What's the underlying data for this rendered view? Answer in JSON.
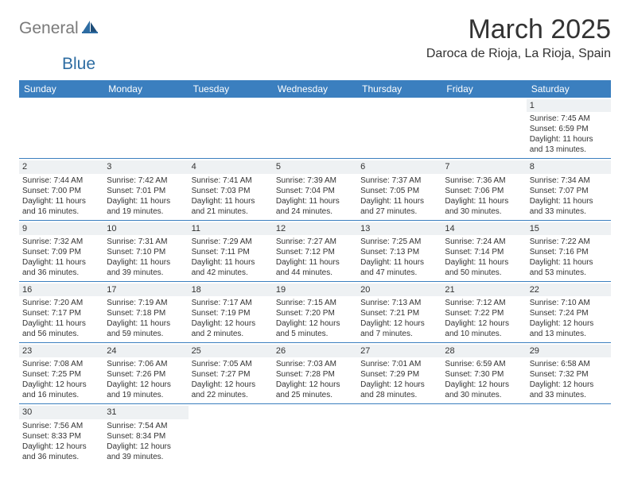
{
  "logo": {
    "gray": "General",
    "blue": "Blue"
  },
  "title": "March 2025",
  "location": "Daroca de Rioja, La Rioja, Spain",
  "colors": {
    "header_bg": "#3b7fbf",
    "header_text": "#ffffff",
    "daynum_bg": "#eef1f3",
    "body_text": "#333333",
    "logo_gray": "#7a7a7a",
    "logo_blue": "#2d6ca2",
    "divider": "#3b7fbf"
  },
  "dow": [
    "Sunday",
    "Monday",
    "Tuesday",
    "Wednesday",
    "Thursday",
    "Friday",
    "Saturday"
  ],
  "weeks": [
    [
      null,
      null,
      null,
      null,
      null,
      null,
      {
        "n": "1",
        "sr": "Sunrise: 7:45 AM",
        "ss": "Sunset: 6:59 PM",
        "dl": "Daylight: 11 hours and 13 minutes."
      }
    ],
    [
      {
        "n": "2",
        "sr": "Sunrise: 7:44 AM",
        "ss": "Sunset: 7:00 PM",
        "dl": "Daylight: 11 hours and 16 minutes."
      },
      {
        "n": "3",
        "sr": "Sunrise: 7:42 AM",
        "ss": "Sunset: 7:01 PM",
        "dl": "Daylight: 11 hours and 19 minutes."
      },
      {
        "n": "4",
        "sr": "Sunrise: 7:41 AM",
        "ss": "Sunset: 7:03 PM",
        "dl": "Daylight: 11 hours and 21 minutes."
      },
      {
        "n": "5",
        "sr": "Sunrise: 7:39 AM",
        "ss": "Sunset: 7:04 PM",
        "dl": "Daylight: 11 hours and 24 minutes."
      },
      {
        "n": "6",
        "sr": "Sunrise: 7:37 AM",
        "ss": "Sunset: 7:05 PM",
        "dl": "Daylight: 11 hours and 27 minutes."
      },
      {
        "n": "7",
        "sr": "Sunrise: 7:36 AM",
        "ss": "Sunset: 7:06 PM",
        "dl": "Daylight: 11 hours and 30 minutes."
      },
      {
        "n": "8",
        "sr": "Sunrise: 7:34 AM",
        "ss": "Sunset: 7:07 PM",
        "dl": "Daylight: 11 hours and 33 minutes."
      }
    ],
    [
      {
        "n": "9",
        "sr": "Sunrise: 7:32 AM",
        "ss": "Sunset: 7:09 PM",
        "dl": "Daylight: 11 hours and 36 minutes."
      },
      {
        "n": "10",
        "sr": "Sunrise: 7:31 AM",
        "ss": "Sunset: 7:10 PM",
        "dl": "Daylight: 11 hours and 39 minutes."
      },
      {
        "n": "11",
        "sr": "Sunrise: 7:29 AM",
        "ss": "Sunset: 7:11 PM",
        "dl": "Daylight: 11 hours and 42 minutes."
      },
      {
        "n": "12",
        "sr": "Sunrise: 7:27 AM",
        "ss": "Sunset: 7:12 PM",
        "dl": "Daylight: 11 hours and 44 minutes."
      },
      {
        "n": "13",
        "sr": "Sunrise: 7:25 AM",
        "ss": "Sunset: 7:13 PM",
        "dl": "Daylight: 11 hours and 47 minutes."
      },
      {
        "n": "14",
        "sr": "Sunrise: 7:24 AM",
        "ss": "Sunset: 7:14 PM",
        "dl": "Daylight: 11 hours and 50 minutes."
      },
      {
        "n": "15",
        "sr": "Sunrise: 7:22 AM",
        "ss": "Sunset: 7:16 PM",
        "dl": "Daylight: 11 hours and 53 minutes."
      }
    ],
    [
      {
        "n": "16",
        "sr": "Sunrise: 7:20 AM",
        "ss": "Sunset: 7:17 PM",
        "dl": "Daylight: 11 hours and 56 minutes."
      },
      {
        "n": "17",
        "sr": "Sunrise: 7:19 AM",
        "ss": "Sunset: 7:18 PM",
        "dl": "Daylight: 11 hours and 59 minutes."
      },
      {
        "n": "18",
        "sr": "Sunrise: 7:17 AM",
        "ss": "Sunset: 7:19 PM",
        "dl": "Daylight: 12 hours and 2 minutes."
      },
      {
        "n": "19",
        "sr": "Sunrise: 7:15 AM",
        "ss": "Sunset: 7:20 PM",
        "dl": "Daylight: 12 hours and 5 minutes."
      },
      {
        "n": "20",
        "sr": "Sunrise: 7:13 AM",
        "ss": "Sunset: 7:21 PM",
        "dl": "Daylight: 12 hours and 7 minutes."
      },
      {
        "n": "21",
        "sr": "Sunrise: 7:12 AM",
        "ss": "Sunset: 7:22 PM",
        "dl": "Daylight: 12 hours and 10 minutes."
      },
      {
        "n": "22",
        "sr": "Sunrise: 7:10 AM",
        "ss": "Sunset: 7:24 PM",
        "dl": "Daylight: 12 hours and 13 minutes."
      }
    ],
    [
      {
        "n": "23",
        "sr": "Sunrise: 7:08 AM",
        "ss": "Sunset: 7:25 PM",
        "dl": "Daylight: 12 hours and 16 minutes."
      },
      {
        "n": "24",
        "sr": "Sunrise: 7:06 AM",
        "ss": "Sunset: 7:26 PM",
        "dl": "Daylight: 12 hours and 19 minutes."
      },
      {
        "n": "25",
        "sr": "Sunrise: 7:05 AM",
        "ss": "Sunset: 7:27 PM",
        "dl": "Daylight: 12 hours and 22 minutes."
      },
      {
        "n": "26",
        "sr": "Sunrise: 7:03 AM",
        "ss": "Sunset: 7:28 PM",
        "dl": "Daylight: 12 hours and 25 minutes."
      },
      {
        "n": "27",
        "sr": "Sunrise: 7:01 AM",
        "ss": "Sunset: 7:29 PM",
        "dl": "Daylight: 12 hours and 28 minutes."
      },
      {
        "n": "28",
        "sr": "Sunrise: 6:59 AM",
        "ss": "Sunset: 7:30 PM",
        "dl": "Daylight: 12 hours and 30 minutes."
      },
      {
        "n": "29",
        "sr": "Sunrise: 6:58 AM",
        "ss": "Sunset: 7:32 PM",
        "dl": "Daylight: 12 hours and 33 minutes."
      }
    ],
    [
      {
        "n": "30",
        "sr": "Sunrise: 7:56 AM",
        "ss": "Sunset: 8:33 PM",
        "dl": "Daylight: 12 hours and 36 minutes."
      },
      {
        "n": "31",
        "sr": "Sunrise: 7:54 AM",
        "ss": "Sunset: 8:34 PM",
        "dl": "Daylight: 12 hours and 39 minutes."
      },
      null,
      null,
      null,
      null,
      null
    ]
  ]
}
